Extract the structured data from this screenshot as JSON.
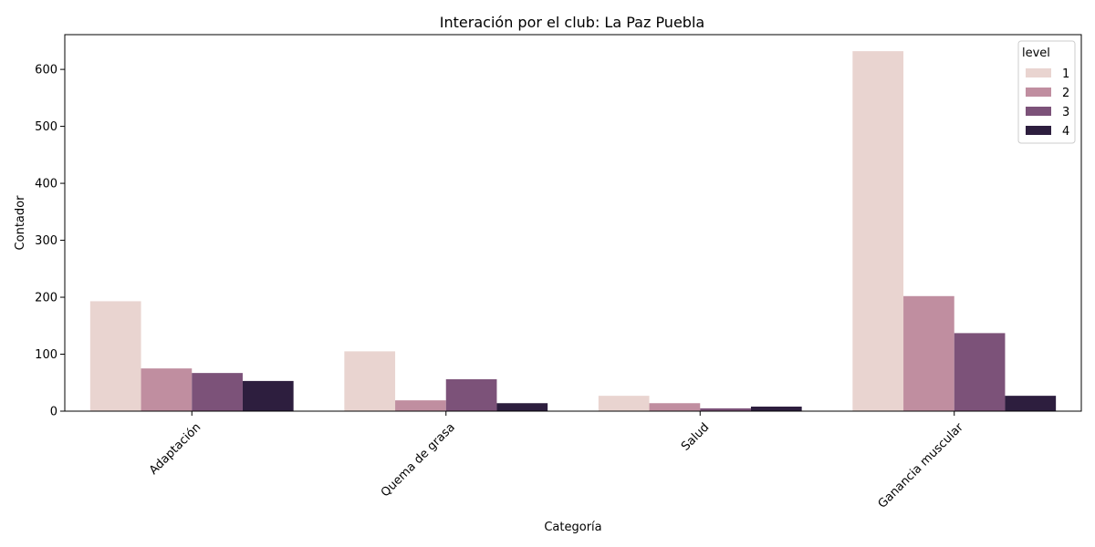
{
  "chart_data": {
    "type": "bar",
    "title": "Interación por el club: La Paz Puebla",
    "xlabel": "Categoría",
    "ylabel": "Contador",
    "categories": [
      "Adaptación",
      "Quema de grasa",
      "Salud",
      "Ganancia muscular"
    ],
    "series": [
      {
        "name": "1",
        "color": "#e9d4d0",
        "values": [
          193,
          105,
          27,
          632
        ]
      },
      {
        "name": "2",
        "color": "#c08ea0",
        "values": [
          75,
          19,
          14,
          202
        ]
      },
      {
        "name": "3",
        "color": "#7c5279",
        "values": [
          67,
          56,
          5,
          137
        ]
      },
      {
        "name": "4",
        "color": "#2d1e3e",
        "values": [
          53,
          14,
          8,
          27
        ]
      }
    ],
    "ylim": [
      0,
      661
    ],
    "yticks": [
      0,
      100,
      200,
      300,
      400,
      500,
      600
    ],
    "grid": false,
    "legend": {
      "title": "level",
      "placement": "top-right"
    }
  }
}
